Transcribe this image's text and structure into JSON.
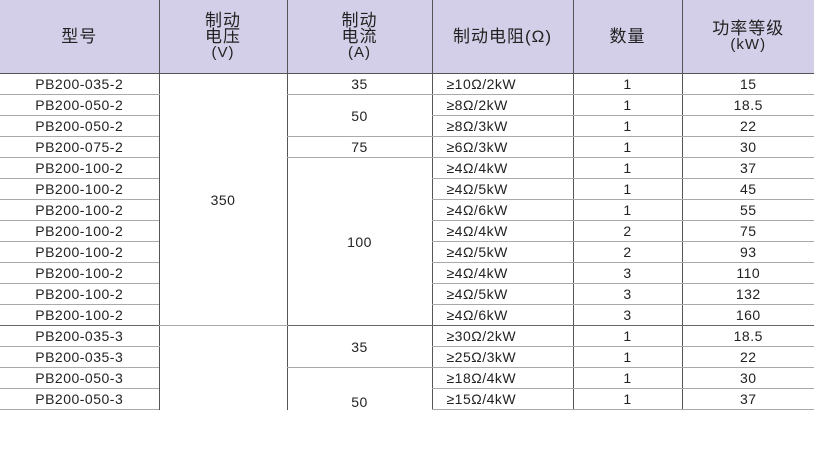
{
  "header": {
    "model": "型号",
    "voltage": [
      "制动",
      "电压",
      "(V)"
    ],
    "current": [
      "制动",
      "电流",
      "(A)"
    ],
    "resistor": "制动电阻(Ω)",
    "quantity": "数量",
    "power": [
      "功率等级",
      "(kW)"
    ]
  },
  "colors": {
    "header_bg": "#d3cfe8",
    "grid": "#555555"
  },
  "rows": [
    {
      "model": "PB200-035-2",
      "resistor": "≥10Ω/2kW",
      "qty": "1",
      "power": "15"
    },
    {
      "model": "PB200-050-2",
      "resistor": "≥8Ω/2kW",
      "qty": "1",
      "power": "18.5"
    },
    {
      "model": "PB200-050-2",
      "resistor": "≥8Ω/3kW",
      "qty": "1",
      "power": "22"
    },
    {
      "model": "PB200-075-2",
      "resistor": "≥6Ω/3kW",
      "qty": "1",
      "power": "30"
    },
    {
      "model": "PB200-100-2",
      "resistor": "≥4Ω/4kW",
      "qty": "1",
      "power": "37"
    },
    {
      "model": "PB200-100-2",
      "resistor": "≥4Ω/5kW",
      "qty": "1",
      "power": "45"
    },
    {
      "model": "PB200-100-2",
      "resistor": "≥4Ω/6kW",
      "qty": "1",
      "power": "55"
    },
    {
      "model": "PB200-100-2",
      "resistor": "≥4Ω/4kW",
      "qty": "2",
      "power": "75"
    },
    {
      "model": "PB200-100-2",
      "resistor": "≥4Ω/5kW",
      "qty": "2",
      "power": "93"
    },
    {
      "model": "PB200-100-2",
      "resistor": "≥4Ω/4kW",
      "qty": "3",
      "power": "110"
    },
    {
      "model": "PB200-100-2",
      "resistor": "≥4Ω/5kW",
      "qty": "3",
      "power": "132"
    },
    {
      "model": "PB200-100-2",
      "resistor": "≥4Ω/6kW",
      "qty": "3",
      "power": "160"
    },
    {
      "model": "PB200-035-3",
      "resistor": "≥30Ω/2kW",
      "qty": "1",
      "power": "18.5"
    },
    {
      "model": "PB200-035-3",
      "resistor": "≥25Ω/3kW",
      "qty": "1",
      "power": "22"
    },
    {
      "model": "PB200-050-3",
      "resistor": "≥18Ω/4kW",
      "qty": "1",
      "power": "30"
    },
    {
      "model": "PB200-050-3",
      "resistor": "≥15Ω/4kW",
      "qty": "1",
      "power": "37"
    }
  ],
  "merged": {
    "voltage_group1": "350",
    "current": [
      "35",
      "50",
      "75",
      "100",
      "35",
      "50"
    ]
  }
}
